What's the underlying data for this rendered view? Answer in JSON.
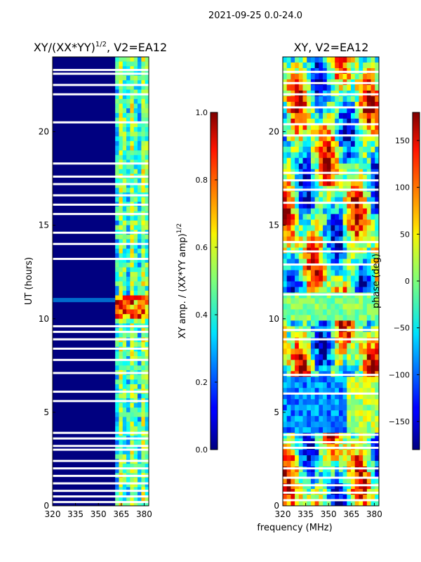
{
  "figure": {
    "suptitle": "2021-09-25 0.0-24.0",
    "xlabel": "frequency (MHz)"
  },
  "chart_data": [
    {
      "type": "heatmap",
      "panel": "left",
      "title_main": "XY/(XX*YY)",
      "title_sup": "1/2",
      "title_tail": ", V2=EA12",
      "ylabel": "UT (hours)",
      "xlim": [
        320,
        383
      ],
      "ylim": [
        0,
        24
      ],
      "xticks": [
        320,
        335,
        350,
        365,
        380
      ],
      "yticks": [
        0,
        5,
        10,
        15,
        20
      ],
      "x_ticklabels": [
        "320",
        "335",
        "350",
        "365",
        "380"
      ],
      "y_ticklabels": [
        "0",
        "5",
        "10",
        "15",
        "20"
      ],
      "background_color": "#000080",
      "signal_band_mhz": [
        361,
        383
      ],
      "high_band_hours": [
        10.1,
        11.3
      ],
      "white_gaps_hours": [
        0.2,
        0.5,
        0.8,
        1.2,
        1.6,
        2.0,
        2.4,
        3.0,
        3.2,
        3.6,
        3.9,
        5.6,
        6.1,
        7.1,
        7.8,
        8.4,
        8.9,
        9.3,
        9.6,
        13.2,
        14.0,
        14.6,
        15.6,
        16.1,
        16.6,
        17.2,
        17.6,
        18.3,
        20.5,
        22.0,
        22.5,
        23.1,
        23.3
      ],
      "colorbar": {
        "label_main": "XY amp. / (XX*YY amp)",
        "label_sup": "1/2",
        "range": [
          0.0,
          1.0
        ],
        "ticks": [
          "0.0",
          "0.2",
          "0.4",
          "0.6",
          "0.8",
          "1.0"
        ]
      }
    },
    {
      "type": "heatmap",
      "panel": "right",
      "title": "XY, V2=EA12",
      "xlim": [
        320,
        383
      ],
      "ylim": [
        0,
        24
      ],
      "xticks": [
        320,
        335,
        350,
        365,
        380
      ],
      "yticks": [
        0,
        5,
        10,
        15,
        20
      ],
      "x_ticklabels": [
        "320",
        "335",
        "350",
        "365",
        "380"
      ],
      "y_ticklabels": [
        "0",
        "5",
        "10",
        "15",
        "20"
      ],
      "white_gaps_hours": [
        0.3,
        0.7,
        1.1,
        1.5,
        2.0,
        3.1,
        3.4,
        3.8,
        6.0,
        7.0,
        8.9,
        9.4,
        11.3,
        12.9,
        13.6,
        14.1,
        16.2,
        16.9,
        17.4,
        17.8,
        19.8,
        20.4,
        21.3,
        22.0,
        22.6,
        23.2
      ],
      "colorbar": {
        "label": "phase (deg)",
        "range": [
          -180,
          180
        ],
        "ticks": [
          "−150",
          "−100",
          "−50",
          "0",
          "50",
          "100",
          "150"
        ],
        "tick_values": [
          -150,
          -100,
          -50,
          0,
          50,
          100,
          150
        ]
      }
    }
  ]
}
